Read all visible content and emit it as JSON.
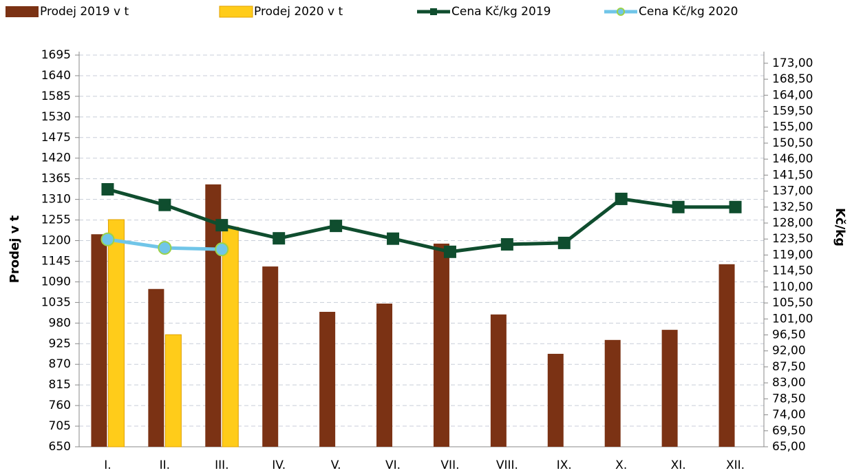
{
  "chart_data": {
    "type": "combo",
    "y_label": "Prodej v t",
    "y2_label": "Kč/kg",
    "categories": [
      "I.",
      "II.",
      "III.",
      "IV.",
      "V.",
      "VI.",
      "VII.",
      "VIII.",
      "IX.",
      "X.",
      "XI.",
      "XII."
    ],
    "series": [
      {
        "name": "Prodej 2019 v t",
        "type": "bar",
        "color": "#7b3214",
        "values": [
          1217,
          1071,
          1350,
          1131,
          1010,
          1032,
          1192,
          1003,
          898,
          935,
          962,
          1137
        ]
      },
      {
        "name": "Prodej 2020 v t",
        "type": "bar",
        "color": "#ffcc1a",
        "values": [
          1256,
          949,
          1236,
          null,
          null,
          null,
          null,
          null,
          null,
          null,
          null,
          null
        ]
      },
      {
        "name": "Cena Kč/kg 2019",
        "type": "line",
        "axis": "y2",
        "color": "#0f4d2e",
        "values": [
          137.5,
          133.1,
          127.4,
          123.7,
          127.2,
          123.6,
          119.9,
          122.0,
          122.4,
          134.8,
          132.5,
          132.5
        ]
      },
      {
        "name": "Cena Kč/kg 2020",
        "type": "line",
        "axis": "y2",
        "color": "#70c5e8",
        "values": [
          123.4,
          121.0,
          120.6,
          null,
          null,
          null,
          null,
          null,
          null,
          null,
          null,
          null
        ]
      }
    ],
    "ylim": [
      650,
      1695
    ],
    "yticks": [
      650,
      705,
      760,
      815,
      870,
      925,
      980,
      1035,
      1090,
      1145,
      1200,
      1255,
      1310,
      1365,
      1420,
      1475,
      1530,
      1585,
      1640,
      1695
    ],
    "y2lim": [
      65,
      175.3
    ],
    "y2ticks": [
      {
        "value": 65,
        "label": "65,00"
      },
      {
        "value": 69.5,
        "label": "69,50"
      },
      {
        "value": 74,
        "label": "74,00"
      },
      {
        "value": 78.5,
        "label": "78,50"
      },
      {
        "value": 83,
        "label": "83,00"
      },
      {
        "value": 87.5,
        "label": "87,50"
      },
      {
        "value": 92,
        "label": "92,00"
      },
      {
        "value": 96.5,
        "label": "96,50"
      },
      {
        "value": 101,
        "label": "101,00"
      },
      {
        "value": 105.5,
        "label": "105,50"
      },
      {
        "value": 110,
        "label": "110,00"
      },
      {
        "value": 114.5,
        "label": "114,50"
      },
      {
        "value": 119,
        "label": "119,00"
      },
      {
        "value": 123.5,
        "label": "123,50"
      },
      {
        "value": 128,
        "label": "128,00"
      },
      {
        "value": 132.5,
        "label": "132,50"
      },
      {
        "value": 137,
        "label": "137,00"
      },
      {
        "value": 141.5,
        "label": "141,50"
      },
      {
        "value": 146,
        "label": "146,00"
      },
      {
        "value": 150.5,
        "label": "150,50"
      },
      {
        "value": 155,
        "label": "155,00"
      },
      {
        "value": 159.5,
        "label": "159,50"
      },
      {
        "value": 164,
        "label": "164,00"
      },
      {
        "value": 168.5,
        "label": "168,50"
      },
      {
        "value": 173,
        "label": "173,00"
      }
    ],
    "grid": true,
    "legend": "top"
  }
}
